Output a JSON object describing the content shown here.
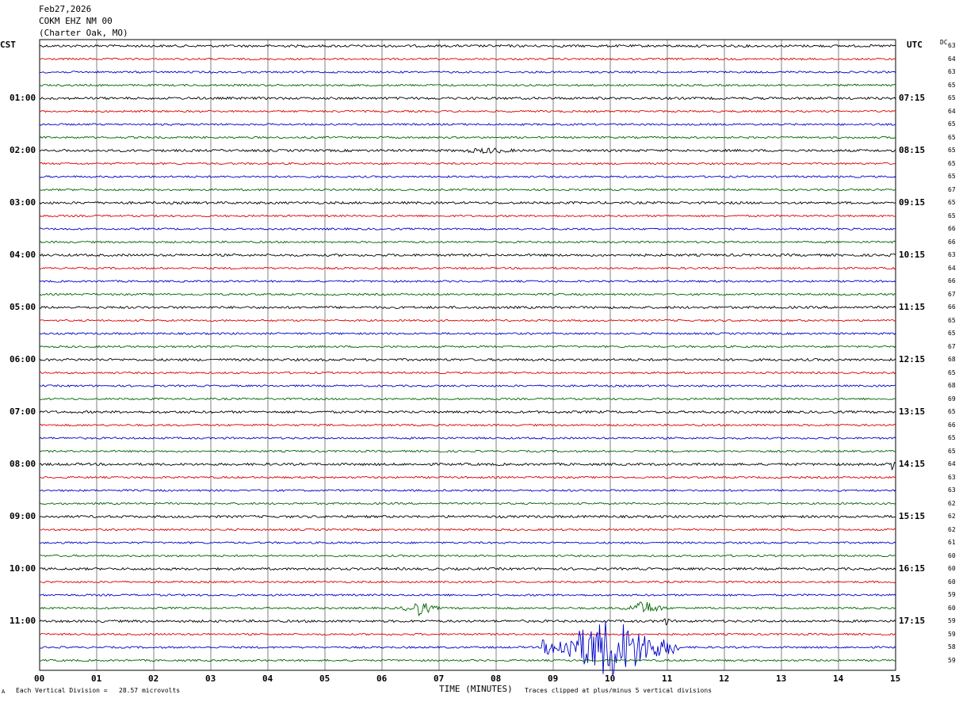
{
  "header": {
    "date": "Feb27,2026",
    "station": "COKM EHZ NM 00",
    "location": "(Charter Oak, MO)"
  },
  "left_zone_label": "CST",
  "right_zone_label": "UTC",
  "dc_label": "DC",
  "footer": {
    "scale_note": "Each Vertical Division =   28.57 microvolts",
    "xlabel": "TIME (MINUTES)",
    "clip_note": "Traces clipped at plus/minus 5 vertical divisions",
    "corner_mark": "A"
  },
  "colors": {
    "trace_cycle": [
      "#000000",
      "#dd0000",
      "#0000cc",
      "#006600"
    ],
    "grid": "#808080"
  },
  "chart_data": {
    "type": "line",
    "title": "",
    "xlabel": "TIME (MINUTES)",
    "xlim": [
      0,
      15
    ],
    "x_ticks": [
      "00",
      "01",
      "02",
      "03",
      "04",
      "05",
      "06",
      "07",
      "08",
      "09",
      "10",
      "11",
      "12",
      "13",
      "14",
      "15"
    ],
    "trace_count": 48,
    "left_hour_labels": [
      "01:00",
      "02:00",
      "03:00",
      "04:00",
      "05:00",
      "06:00",
      "07:00",
      "08:00",
      "09:00",
      "10:00",
      "11:00"
    ],
    "right_hour_labels": [
      "07:15",
      "08:15",
      "09:15",
      "10:15",
      "11:15",
      "12:15",
      "13:15",
      "14:15",
      "15:15",
      "16:15",
      "17:15"
    ],
    "dc_offsets": [
      "63",
      "64",
      "63",
      "65",
      "65",
      "64",
      "65",
      "65",
      "65",
      "65",
      "65",
      "67",
      "65",
      "65",
      "66",
      "66",
      "63",
      "64",
      "66",
      "67",
      "66",
      "65",
      "65",
      "67",
      "68",
      "65",
      "68",
      "69",
      "65",
      "66",
      "65",
      "65",
      "64",
      "63",
      "63",
      "62",
      "62",
      "62",
      "61",
      "60",
      "60",
      "60",
      "59",
      "60",
      "59",
      "59",
      "58",
      "59"
    ],
    "events": [
      {
        "trace": 43,
        "minute_start": 6.3,
        "minute_end": 7.0,
        "amplitude": 10
      },
      {
        "trace": 43,
        "minute_start": 10.2,
        "minute_end": 11.0,
        "amplitude": 10
      },
      {
        "trace": 44,
        "minute_start": 10.8,
        "minute_end": 11.1,
        "amplitude": 6
      },
      {
        "trace": 46,
        "minute_start": 8.8,
        "minute_end": 11.2,
        "amplitude": 40
      },
      {
        "trace": 32,
        "minute_start": 14.9,
        "minute_end": 15.0,
        "amplitude": 9
      },
      {
        "trace": 8,
        "minute_start": 7.0,
        "minute_end": 8.7,
        "amplitude": 4
      }
    ]
  }
}
